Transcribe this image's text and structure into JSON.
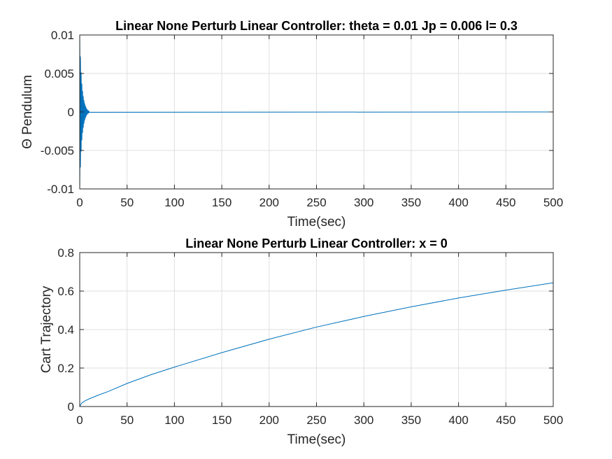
{
  "chart_data": [
    {
      "type": "line",
      "title": "Linear None Perturb Linear Controller: theta = 0.01 Jp = 0.006 l= 0.3",
      "xlabel": "Time(sec)",
      "ylabel": "Θ Pendulum",
      "xlim": [
        0,
        500
      ],
      "ylim": [
        -0.01,
        0.01
      ],
      "xticks": [
        0,
        50,
        100,
        150,
        200,
        250,
        300,
        350,
        400,
        450,
        500
      ],
      "xtick_labels": [
        "0",
        "50",
        "100",
        "150",
        "200",
        "250",
        "300",
        "350",
        "400",
        "450",
        "500"
      ],
      "yticks": [
        -0.01,
        -0.005,
        0,
        0.005,
        0.01
      ],
      "ytick_labels": [
        "-0.01",
        "-0.005",
        "0",
        "0.005",
        "0.01"
      ],
      "grid": true,
      "series": [
        {
          "color": "#0072BD",
          "style": "damped-oscillation",
          "initial_amplitude": 0.01,
          "decay_end_time": 10,
          "x": [
            0,
            1,
            2,
            3,
            4,
            5,
            6,
            7,
            8,
            9,
            10,
            500
          ],
          "envelope": [
            0.01,
            0.0062,
            0.004,
            0.0027,
            0.0018,
            0.0012,
            0.0008,
            0.0005,
            0.0003,
            0.0002,
            0.0001,
            0
          ]
        }
      ]
    },
    {
      "type": "line",
      "title": "Linear None Perturb Linear Controller: x = 0",
      "xlabel": "Time(sec)",
      "ylabel": "Cart Trajectory",
      "xlim": [
        0,
        500
      ],
      "ylim": [
        0,
        0.8
      ],
      "xticks": [
        0,
        50,
        100,
        150,
        200,
        250,
        300,
        350,
        400,
        450,
        500
      ],
      "xtick_labels": [
        "0",
        "50",
        "100",
        "150",
        "200",
        "250",
        "300",
        "350",
        "400",
        "450",
        "500"
      ],
      "yticks": [
        0,
        0.2,
        0.4,
        0.6,
        0.8
      ],
      "ytick_labels": [
        "0",
        "0.2",
        "0.4",
        "0.6",
        "0.8"
      ],
      "grid": true,
      "series": [
        {
          "color": "#0072BD",
          "x": [
            0,
            2,
            5,
            10,
            20,
            30,
            50,
            75,
            100,
            150,
            200,
            250,
            300,
            350,
            400,
            450,
            500
          ],
          "y": [
            0,
            0.018,
            0.028,
            0.04,
            0.06,
            0.078,
            0.12,
            0.165,
            0.205,
            0.28,
            0.35,
            0.413,
            0.468,
            0.518,
            0.564,
            0.605,
            0.643
          ]
        }
      ]
    }
  ]
}
